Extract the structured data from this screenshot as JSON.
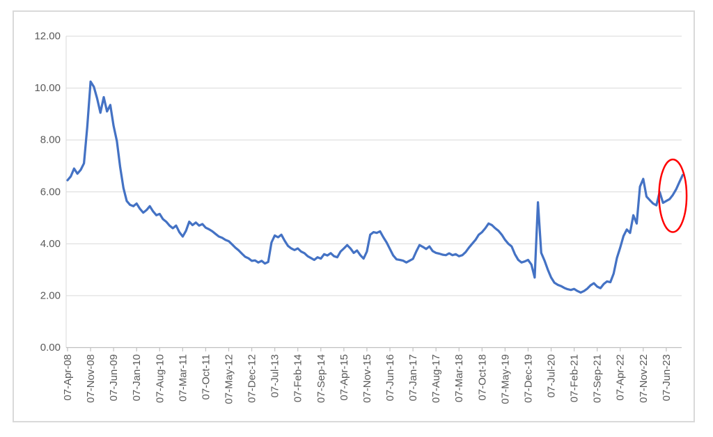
{
  "chart_data": {
    "type": "line",
    "title": "",
    "legend": "none",
    "x_axis": {
      "tick_labels": [
        "07-Apr-08",
        "07-Nov-08",
        "07-Jun-09",
        "07-Jan-10",
        "07-Aug-10",
        "07-Mar-11",
        "07-Oct-11",
        "07-May-12",
        "07-Dec-12",
        "07-Jul-13",
        "07-Feb-14",
        "07-Sep-14",
        "07-Apr-15",
        "07-Nov-15",
        "07-Jun-16",
        "07-Jan-17",
        "07-Aug-17",
        "07-Mar-18",
        "07-Oct-18",
        "07-May-19",
        "07-Dec-19",
        "07-Jul-20",
        "07-Feb-21",
        "07-Sep-21",
        "07-Apr-22",
        "07-Nov-22",
        "07-Jun-23"
      ],
      "ticks_every_n_points": 7,
      "label_rotation_degrees": 90
    },
    "y_axis": {
      "tick_labels": [
        "0.00",
        "2.00",
        "4.00",
        "6.00",
        "8.00",
        "10.00",
        "12.00"
      ],
      "min": 0,
      "max": 12,
      "grid": true
    },
    "series": [
      {
        "name": "series-1",
        "color": "#4472C4",
        "start_label": "07-Apr-08",
        "interval": "monthly",
        "values": [
          6.45,
          6.6,
          6.9,
          6.7,
          6.85,
          7.1,
          8.5,
          10.25,
          10.05,
          9.6,
          9.05,
          9.65,
          9.1,
          9.35,
          8.55,
          7.95,
          6.95,
          6.15,
          5.65,
          5.5,
          5.45,
          5.55,
          5.35,
          5.2,
          5.3,
          5.45,
          5.25,
          5.1,
          5.15,
          4.95,
          4.85,
          4.7,
          4.6,
          4.7,
          4.45,
          4.28,
          4.5,
          4.85,
          4.72,
          4.82,
          4.7,
          4.76,
          4.62,
          4.56,
          4.48,
          4.38,
          4.28,
          4.23,
          4.15,
          4.1,
          3.98,
          3.85,
          3.75,
          3.62,
          3.5,
          3.44,
          3.34,
          3.36,
          3.28,
          3.34,
          3.24,
          3.3,
          4.05,
          4.32,
          4.25,
          4.35,
          4.12,
          3.92,
          3.82,
          3.76,
          3.82,
          3.7,
          3.64,
          3.52,
          3.45,
          3.38,
          3.48,
          3.43,
          3.6,
          3.55,
          3.64,
          3.52,
          3.48,
          3.7,
          3.82,
          3.95,
          3.82,
          3.65,
          3.74,
          3.56,
          3.43,
          3.7,
          4.35,
          4.45,
          4.42,
          4.48,
          4.25,
          4.05,
          3.8,
          3.55,
          3.4,
          3.38,
          3.35,
          3.28,
          3.35,
          3.42,
          3.7,
          3.95,
          3.88,
          3.8,
          3.9,
          3.72,
          3.65,
          3.62,
          3.58,
          3.56,
          3.63,
          3.56,
          3.6,
          3.52,
          3.56,
          3.68,
          3.85,
          4.0,
          4.15,
          4.35,
          4.45,
          4.6,
          4.78,
          4.72,
          4.6,
          4.5,
          4.35,
          4.15,
          4.0,
          3.9,
          3.6,
          3.38,
          3.28,
          3.32,
          3.38,
          3.2,
          2.7,
          5.6,
          3.65,
          3.35,
          3.0,
          2.7,
          2.5,
          2.42,
          2.37,
          2.3,
          2.25,
          2.22,
          2.26,
          2.18,
          2.12,
          2.18,
          2.27,
          2.4,
          2.48,
          2.35,
          2.29,
          2.45,
          2.55,
          2.52,
          2.85,
          3.45,
          3.85,
          4.3,
          4.55,
          4.42,
          5.1,
          4.78,
          6.2,
          6.5,
          5.82,
          5.68,
          5.55,
          5.48,
          6.0,
          5.58,
          5.65,
          5.72,
          5.88,
          6.1,
          6.38,
          6.65
        ]
      }
    ],
    "annotations": [
      {
        "type": "ellipse",
        "color": "#FF0000",
        "center_point_index": 184,
        "center_value": 5.85,
        "rx_points": 4.2,
        "ry_value": 1.4,
        "stroke_width": 2.5
      }
    ]
  },
  "colors": {
    "background": "#FFFFFF",
    "frame_border": "#D9D9D9",
    "grid": "#D9D9D9",
    "axis": "#BFBFBF",
    "tick_text": "#595959",
    "line": "#4472C4",
    "ellipse": "#FF0000"
  }
}
